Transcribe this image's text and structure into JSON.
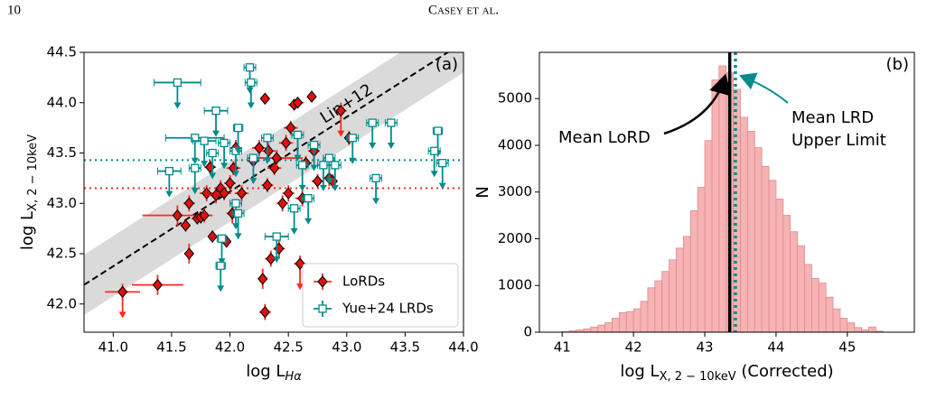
{
  "header": {
    "page_number": "10",
    "running_head": "Casey et al."
  },
  "chart_data": [
    {
      "type": "scatter",
      "panel_label": "(a)",
      "xlabel": {
        "text": "log L",
        "subscript": "Hα"
      },
      "ylabel": {
        "text": "log L",
        "subscript": "X, 2 − 10keV"
      },
      "xlim": [
        40.75,
        44.0
      ],
      "ylim": [
        41.72,
        44.5
      ],
      "xticks": [
        {
          "value": 41.0,
          "label": "41.0"
        },
        {
          "value": 41.5,
          "label": "41.5"
        },
        {
          "value": 42.0,
          "label": "42.0"
        },
        {
          "value": 42.5,
          "label": "42.5"
        },
        {
          "value": 43.0,
          "label": "43.0"
        },
        {
          "value": 43.5,
          "label": "43.5"
        },
        {
          "value": 44.0,
          "label": "44.0"
        }
      ],
      "yticks": [
        {
          "value": 42.0,
          "label": "42.0"
        },
        {
          "value": 42.5,
          "label": "42.5"
        },
        {
          "value": 43.0,
          "label": "43.0"
        },
        {
          "value": 43.5,
          "label": "43.5"
        },
        {
          "value": 44.0,
          "label": "44.0"
        },
        {
          "value": 44.5,
          "label": "44.5"
        }
      ],
      "relation": {
        "label": "Lin+12",
        "x": [
          40.75,
          44.0
        ],
        "y": [
          42.19,
          44.6
        ],
        "scatter": 0.3
      },
      "hlines": [
        {
          "y": 43.43,
          "color": "#008b8b"
        },
        {
          "y": 43.15,
          "color": "#ff2a1a"
        }
      ],
      "legend": "lower right",
      "series": [
        {
          "name": "LoRDs",
          "marker": "diamond",
          "color": "#dd1111",
          "err_color": "#ff2a1a",
          "x": [
            41.08,
            41.38,
            41.55,
            41.62,
            41.65,
            41.65,
            41.72,
            41.75,
            41.78,
            41.8,
            41.83,
            41.85,
            41.88,
            41.92,
            41.95,
            41.97,
            42.0,
            42.02,
            42.03,
            42.05,
            42.1,
            42.2,
            42.25,
            42.28,
            42.3,
            42.3,
            42.32,
            42.33,
            42.35,
            42.38,
            42.4,
            42.42,
            42.45,
            42.48,
            42.5,
            42.52,
            42.55,
            42.58,
            42.6,
            42.62,
            42.65,
            42.7,
            42.72,
            42.75,
            42.85,
            42.88,
            42.95,
            43.02
          ],
          "y": [
            42.12,
            42.19,
            42.88,
            42.78,
            43.0,
            42.5,
            42.85,
            42.86,
            42.88,
            43.1,
            43.36,
            42.67,
            43.08,
            43.15,
            43.1,
            42.62,
            43.2,
            42.9,
            43.35,
            43.55,
            43.1,
            43.42,
            43.55,
            42.25,
            41.92,
            44.04,
            43.18,
            43.52,
            42.45,
            43.35,
            43.45,
            42.55,
            43.0,
            43.6,
            43.1,
            43.75,
            43.98,
            44.0,
            42.4,
            43.05,
            43.4,
            44.06,
            43.52,
            43.22,
            43.25,
            43.22,
            43.92,
            43.65
          ],
          "xerr": [
            0.15,
            0.22,
            0.3,
            0.04,
            0.05,
            0.04,
            0.05,
            0.04,
            0.05,
            0.06,
            0.05,
            0.04,
            0.06,
            0.05,
            0.06,
            0.04,
            0.05,
            0.05,
            0.06,
            0.05,
            0.06,
            0.05,
            0.06,
            0.04,
            0.05,
            0.04,
            0.05,
            0.06,
            0.05,
            0.06,
            0.22,
            0.05,
            0.05,
            0.06,
            0.05,
            0.06,
            0.05,
            0.05,
            0.05,
            0.06,
            0.05,
            0.04,
            0.05,
            0.05,
            0.05,
            0.04,
            0.05,
            0.04
          ],
          "yerr": [
            0.08,
            0.1,
            0.1,
            0.06,
            0.08,
            0.1,
            0.06,
            0.06,
            0.07,
            0.08,
            0.07,
            0.06,
            0.08,
            0.08,
            0.07,
            0.06,
            0.08,
            0.1,
            0.07,
            0.08,
            0.08,
            0.07,
            0.08,
            0.1,
            0.08,
            0.05,
            0.07,
            0.08,
            0.08,
            0.07,
            0.08,
            0.1,
            0.08,
            0.08,
            0.08,
            0.07,
            0.05,
            0.05,
            0.08,
            0.08,
            0.07,
            0.05,
            0.08,
            0.07,
            0.08,
            0.07,
            0.08,
            0.07
          ],
          "upper_limit": [
            true,
            false,
            false,
            false,
            false,
            false,
            false,
            false,
            false,
            false,
            false,
            false,
            false,
            false,
            false,
            false,
            false,
            false,
            false,
            false,
            false,
            false,
            false,
            false,
            false,
            false,
            false,
            false,
            false,
            false,
            false,
            false,
            false,
            false,
            false,
            false,
            false,
            false,
            true,
            false,
            false,
            false,
            false,
            false,
            false,
            false,
            true,
            false
          ]
        },
        {
          "name": "Yue+24 LRDs",
          "marker": "square",
          "color": "#008b8b",
          "err_color": "#008b8b",
          "x": [
            41.55,
            41.88,
            42.17,
            42.18,
            42.05,
            42.07,
            41.7,
            41.78,
            41.95,
            41.48,
            41.7,
            41.85,
            42.05,
            42.07,
            41.93,
            41.92,
            42.2,
            42.32,
            42.4,
            42.55,
            42.58,
            42.62,
            42.67,
            42.72,
            42.8,
            42.85,
            42.9,
            43.05,
            43.22,
            43.38,
            43.25,
            43.78,
            43.75,
            43.82
          ],
          "y": [
            44.2,
            43.92,
            44.35,
            44.2,
            43.52,
            43.75,
            43.65,
            43.62,
            43.6,
            43.32,
            43.35,
            43.5,
            43.0,
            42.9,
            42.65,
            42.38,
            43.45,
            43.65,
            42.67,
            42.95,
            43.68,
            43.38,
            43.05,
            43.58,
            43.38,
            43.45,
            43.38,
            43.65,
            43.8,
            43.8,
            43.25,
            43.72,
            43.52,
            43.4
          ],
          "xerr": [
            0.2,
            0.1,
            0.05,
            0.05,
            0.05,
            0.04,
            0.25,
            0.1,
            0.05,
            0.1,
            0.05,
            0.05,
            0.05,
            0.05,
            0.04,
            0.04,
            0.05,
            0.05,
            0.1,
            0.05,
            0.05,
            0.05,
            0.05,
            0.05,
            0.05,
            0.05,
            0.05,
            0.05,
            0.05,
            0.05,
            0.05,
            0.04,
            0.05,
            0.05
          ],
          "yerr": [
            0.0,
            0.0,
            0.0,
            0.0,
            0.0,
            0.0,
            0.0,
            0.0,
            0.0,
            0.0,
            0.0,
            0.0,
            0.0,
            0.0,
            0.0,
            0.0,
            0.0,
            0.0,
            0.0,
            0.0,
            0.0,
            0.0,
            0.0,
            0.0,
            0.0,
            0.0,
            0.0,
            0.0,
            0.0,
            0.0,
            0.0,
            0.0,
            0.0,
            0.0
          ],
          "upper_limit": [
            true,
            true,
            true,
            true,
            true,
            true,
            true,
            true,
            true,
            true,
            true,
            true,
            true,
            true,
            true,
            true,
            true,
            true,
            true,
            true,
            true,
            true,
            true,
            true,
            true,
            true,
            true,
            true,
            true,
            true,
            true,
            true,
            true,
            true
          ]
        }
      ]
    },
    {
      "type": "histogram",
      "panel_label": "(b)",
      "xlabel": {
        "text": "log L",
        "subscript": "X, 2 − 10keV",
        "suffix": " (Corrected)"
      },
      "ylabel": "N",
      "xlim": [
        40.68,
        45.94
      ],
      "ylim": [
        0,
        5990
      ],
      "xticks": [
        41,
        42,
        43,
        44,
        45
      ],
      "yticks": [
        0,
        1000,
        2000,
        3000,
        4000,
        5000
      ],
      "color": "#f7b3b3",
      "edge_color": "#d98c8c",
      "bins": [
        41.0,
        41.1,
        41.2,
        41.3,
        41.4,
        41.5,
        41.6,
        41.7,
        41.8,
        41.9,
        42.0,
        42.1,
        42.2,
        42.3,
        42.4,
        42.5,
        42.6,
        42.7,
        42.8,
        42.9,
        43.0,
        43.1,
        43.2,
        43.3,
        43.4,
        43.5,
        43.6,
        43.7,
        43.8,
        43.9,
        44.0,
        44.1,
        44.2,
        44.3,
        44.4,
        44.5,
        44.6,
        44.7,
        44.8,
        44.9,
        45.0,
        45.1,
        45.2,
        45.3,
        45.4,
        45.5
      ],
      "values": [
        10,
        30,
        50,
        70,
        110,
        150,
        200,
        300,
        420,
        440,
        500,
        660,
        950,
        1100,
        1300,
        1550,
        1800,
        2050,
        2600,
        3100,
        4100,
        5400,
        5700,
        5550,
        5200,
        4600,
        4300,
        3950,
        3550,
        3250,
        2850,
        2500,
        2150,
        1850,
        1450,
        1150,
        1050,
        750,
        500,
        300,
        200,
        100,
        50,
        110,
        20
      ],
      "vlines": [
        {
          "x": 43.35,
          "color": "#000000",
          "style": "solid"
        },
        {
          "x": 43.43,
          "color": "#008b8b",
          "style": "dotted"
        }
      ],
      "annotations": [
        {
          "lines": [
            "Mean LoRD"
          ],
          "color": "#000000"
        },
        {
          "lines": [
            "Mean LRD",
            "Upper Limit"
          ],
          "color": "#008b8b"
        }
      ]
    }
  ]
}
